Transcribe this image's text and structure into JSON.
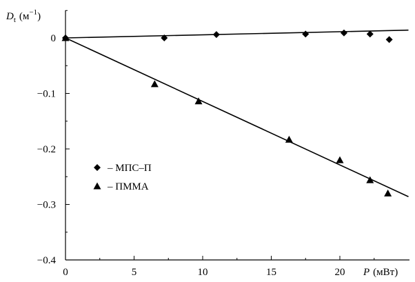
{
  "chart_data": {
    "type": "scatter",
    "title": "",
    "xlabel": {
      "symbol": "P",
      "unit": "(мВт)"
    },
    "ylabel": {
      "symbol": "D",
      "subscript": "t",
      "unit_open": "(м",
      "unit_sup": "−1",
      "unit_close": ")"
    },
    "xlim": [
      0,
      25
    ],
    "ylim": [
      -0.4,
      0.05
    ],
    "xticks": [
      0,
      5,
      10,
      15,
      20
    ],
    "xtick_labels": [
      "0",
      "5",
      "10",
      "15",
      "20"
    ],
    "yticks": [
      0,
      -0.1,
      -0.2,
      -0.3,
      -0.4
    ],
    "ytick_labels": [
      "0",
      "−0.1",
      "−0.2",
      "−0.3",
      "−0.4"
    ],
    "grid": false,
    "legend_position": "lower-left",
    "series": [
      {
        "name": "– МПС–П",
        "marker": "diamond",
        "color": "#000000",
        "points": [
          {
            "x": 0,
            "y": 0
          },
          {
            "x": 7.2,
            "y": 0.0
          },
          {
            "x": 11.0,
            "y": 0.006
          },
          {
            "x": 17.5,
            "y": 0.007
          },
          {
            "x": 20.3,
            "y": 0.009
          },
          {
            "x": 22.2,
            "y": 0.007
          },
          {
            "x": 23.6,
            "y": -0.003
          }
        ],
        "fit_line": {
          "x": [
            0,
            25
          ],
          "y": [
            0,
            0.014
          ]
        }
      },
      {
        "name": "– ПММА",
        "marker": "triangle",
        "color": "#000000",
        "points": [
          {
            "x": 0,
            "y": 0
          },
          {
            "x": 6.5,
            "y": -0.083
          },
          {
            "x": 9.7,
            "y": -0.114
          },
          {
            "x": 16.3,
            "y": -0.183
          },
          {
            "x": 20.0,
            "y": -0.22
          },
          {
            "x": 22.2,
            "y": -0.256
          },
          {
            "x": 23.5,
            "y": -0.28
          }
        ],
        "fit_line": {
          "x": [
            0,
            25
          ],
          "y": [
            0,
            -0.286
          ]
        }
      }
    ]
  }
}
